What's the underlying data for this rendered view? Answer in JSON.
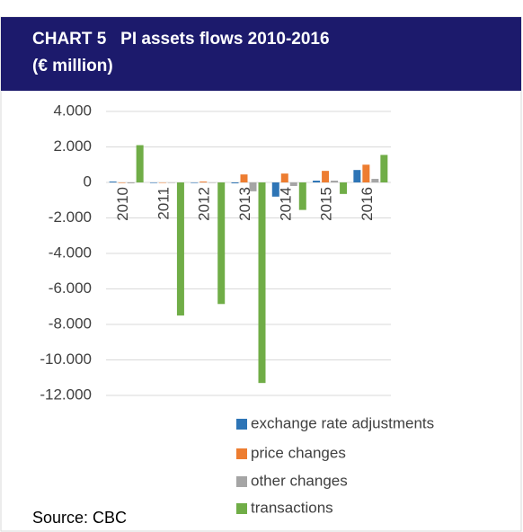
{
  "chart_data": {
    "type": "bar",
    "title": "CHART 5   PI assets flows 2010-2016",
    "subtitle": "(€ million)",
    "source": "Source: CBC",
    "categories": [
      "2010",
      "2011",
      "2012",
      "2013",
      "2014",
      "2015",
      "2016"
    ],
    "series": [
      {
        "name": "exchange rate adjustments",
        "color": "#2e75b6",
        "values": [
          50,
          -30,
          -30,
          -50,
          -800,
          100,
          700
        ]
      },
      {
        "name": "price changes",
        "color": "#ed7d31",
        "values": [
          -30,
          -20,
          50,
          450,
          500,
          650,
          1000
        ]
      },
      {
        "name": "other changes",
        "color": "#a5a5a5",
        "values": [
          -50,
          0,
          0,
          -500,
          -200,
          100,
          200
        ]
      },
      {
        "name": "transactions",
        "color": "#70ad47",
        "values": [
          2100,
          -7500,
          -6850,
          -11300,
          -1550,
          -650,
          1550
        ]
      }
    ],
    "ylim": [
      -12000,
      4000
    ],
    "yticks": [
      {
        "value": 4000,
        "label": "4.000"
      },
      {
        "value": 2000,
        "label": "2.000"
      },
      0,
      {
        "value": -2000,
        "label": "-2.000"
      },
      {
        "value": -4000,
        "label": "-4.000"
      },
      {
        "value": -6000,
        "label": "-6.000"
      },
      {
        "value": -8000,
        "label": "-8.000"
      },
      {
        "value": -10000,
        "label": "-10.000"
      },
      {
        "value": -12000,
        "label": "-12.000"
      }
    ],
    "grid": true
  }
}
